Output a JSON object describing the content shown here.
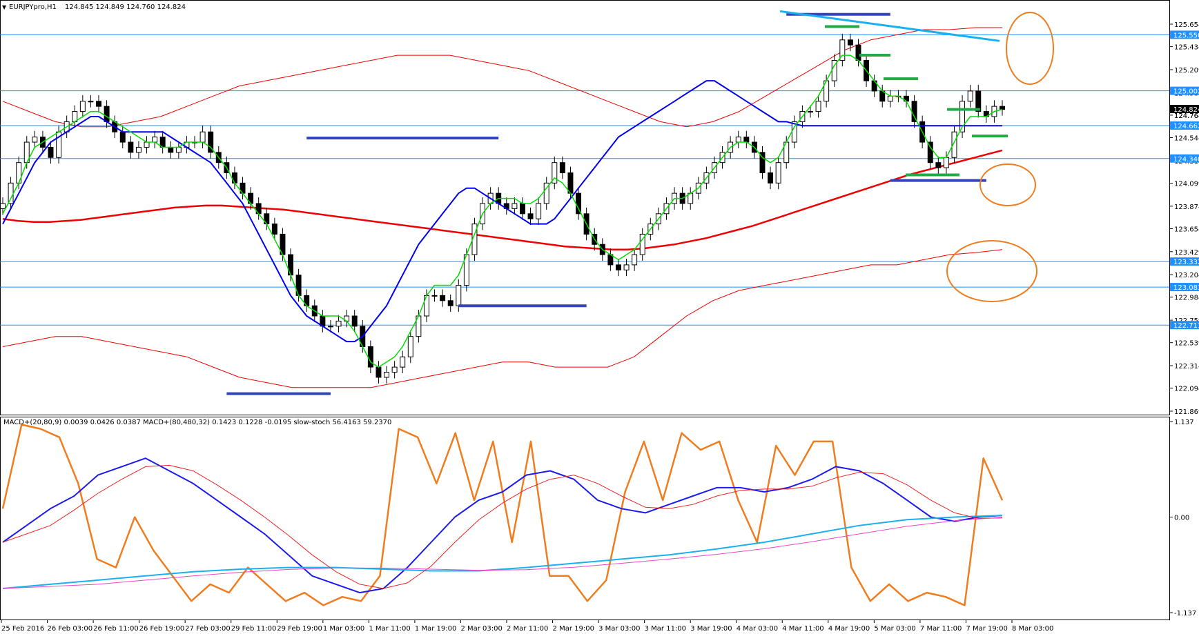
{
  "symbol_label": "EURJPYpro,H1",
  "ohlc": "124.845 124.849 124.760 124.824",
  "indicator_label": "MACD+(20,80,9) 0.0039 0.0426 0.0387  MACD+(80,480,32) 0.1423 0.1228 -0.0195  slow-stoch 56.4163 59.2370",
  "colors": {
    "background": "#ffffff",
    "candle_up": "#ffffff",
    "candle_down": "#000000",
    "ema_fast": "#00dd00",
    "ema_mid": "#0000ee",
    "ema_slow": "#ee0000",
    "bollinger_outer": "#ee0000",
    "bollinger_inner": "#1a1aee",
    "hline": "#1e90ff",
    "support_resist": "#3344bb",
    "small_levels": "#22aa44",
    "trend": "#1ab0f0",
    "circle": "#f07c1e",
    "stoch": "#f07c1e",
    "macd_fast": "#1a1aee",
    "macd_fast_signal": "#ee2222",
    "macd_slow": "#1ab0f0",
    "macd_slow_signal": "#ee44cc",
    "price_tag": "#1e90ff",
    "current_tag": "#000000"
  },
  "chart_data": [
    {
      "type": "candlestick",
      "title": "EURJPYpro,H1",
      "ylim": [
        121.869,
        125.654
      ],
      "y_ticks": [
        "125.654",
        "125.434",
        "125.209",
        "124.984",
        "124.764",
        "124.544",
        "124.319",
        "124.099",
        "123.874",
        "123.654",
        "123.429",
        "123.204",
        "122.984",
        "122.759",
        "122.539",
        "122.314",
        "122.094",
        "121.869"
      ],
      "x_tick_labels": [
        "25 Feb 2016",
        "26 Feb 03:00",
        "26 Feb 11:00",
        "26 Feb 19:00",
        "27 Feb 03:00",
        "29 Feb 11:00",
        "29 Feb 19:00",
        "1 Mar 03:00",
        "1 Mar 11:00",
        "1 Mar 19:00",
        "2 Mar 03:00",
        "2 Mar 11:00",
        "2 Mar 19:00",
        "3 Mar 03:00",
        "3 Mar 11:00",
        "3 Mar 19:00",
        "4 Mar 03:00",
        "4 Mar 11:00",
        "4 Mar 19:00",
        "5 Mar 03:00",
        "7 Mar 11:00",
        "7 Mar 19:00",
        "8 Mar 03:00"
      ],
      "horizontal_levels": [
        {
          "value": 125.55,
          "label": "125.550"
        },
        {
          "value": 125.002,
          "label": "125.002"
        },
        {
          "value": 124.662,
          "label": "124.662"
        },
        {
          "value": 124.34,
          "label": "124.340"
        },
        {
          "value": 123.332,
          "label": "123.332"
        },
        {
          "value": 123.083,
          "label": "123.083"
        },
        {
          "value": 122.711,
          "label": "122.711"
        }
      ],
      "current_price": {
        "value": 124.824,
        "label": "124.824"
      },
      "secondary_price": {
        "value": 124.764,
        "label": "124.764"
      },
      "close_series": [
        123.9,
        124.1,
        124.3,
        124.5,
        124.55,
        124.45,
        124.35,
        124.6,
        124.7,
        124.8,
        124.9,
        124.9,
        124.85,
        124.7,
        124.6,
        124.5,
        124.4,
        124.45,
        124.5,
        124.55,
        124.45,
        124.4,
        124.45,
        124.5,
        124.5,
        124.6,
        124.4,
        124.3,
        124.2,
        124.1,
        124.0,
        123.9,
        123.8,
        123.7,
        123.6,
        123.4,
        123.2,
        123.0,
        122.9,
        122.8,
        122.7,
        122.7,
        122.75,
        122.8,
        122.7,
        122.5,
        122.3,
        122.2,
        122.25,
        122.3,
        122.4,
        122.6,
        122.8,
        123.0,
        123.0,
        122.95,
        122.9,
        123.1,
        123.4,
        123.7,
        123.9,
        124.0,
        123.9,
        123.85,
        123.9,
        123.8,
        123.75,
        123.9,
        124.1,
        124.3,
        124.2,
        124.0,
        123.8,
        123.6,
        123.5,
        123.4,
        123.3,
        123.25,
        123.3,
        123.4,
        123.6,
        123.7,
        123.8,
        123.9,
        124.0,
        123.9,
        124.0,
        124.1,
        124.2,
        124.3,
        124.4,
        124.5,
        124.55,
        124.5,
        124.4,
        124.2,
        124.1,
        124.3,
        124.5,
        124.7,
        124.8,
        124.8,
        124.9,
        125.1,
        125.3,
        125.5,
        125.45,
        125.3,
        125.1,
        125.0,
        124.9,
        124.95,
        124.95,
        124.9,
        124.7,
        124.5,
        124.3,
        124.25,
        124.35,
        124.6,
        124.9,
        125.0,
        124.8,
        124.75,
        124.85,
        124.82
      ],
      "ema_fast": [
        123.8,
        123.95,
        124.1,
        124.3,
        124.45,
        124.5,
        124.55,
        124.6,
        124.65,
        124.7,
        124.75,
        124.8,
        124.8,
        124.75,
        124.7,
        124.65,
        124.6,
        124.55,
        124.5,
        124.5,
        124.45,
        124.45,
        124.45,
        124.5,
        124.5,
        124.5,
        124.45,
        124.35,
        124.25,
        124.1,
        124.0,
        123.9,
        123.8,
        123.7,
        123.55,
        123.4,
        123.2,
        123.0,
        122.9,
        122.85,
        122.8,
        122.8,
        122.8,
        122.75,
        122.65,
        122.5,
        122.35,
        122.3,
        122.35,
        122.4,
        122.5,
        122.65,
        122.8,
        123.0,
        123.1,
        123.1,
        123.1,
        123.2,
        123.4,
        123.6,
        123.8,
        123.9,
        123.95,
        123.95,
        123.95,
        123.9,
        123.9,
        123.95,
        124.05,
        124.15,
        124.1,
        124.0,
        123.85,
        123.7,
        123.55,
        123.45,
        123.4,
        123.35,
        123.4,
        123.45,
        123.55,
        123.65,
        123.75,
        123.85,
        123.95,
        123.95,
        124.0,
        124.05,
        124.15,
        124.25,
        124.35,
        124.45,
        124.5,
        124.5,
        124.45,
        124.35,
        124.3,
        124.35,
        124.5,
        124.65,
        124.75,
        124.85,
        124.95,
        125.1,
        125.25,
        125.35,
        125.35,
        125.3,
        125.2,
        125.1,
        125.0,
        124.95,
        124.95,
        124.9,
        124.75,
        124.6,
        124.45,
        124.35,
        124.35,
        124.5,
        124.65,
        124.75,
        124.75,
        124.75,
        124.8,
        124.82
      ],
      "ema_mid": [
        123.7,
        123.85,
        124.0,
        124.15,
        124.3,
        124.4,
        124.5,
        124.55,
        124.6,
        124.65,
        124.7,
        124.75,
        124.75,
        124.7,
        124.65,
        124.6,
        124.6,
        124.6,
        124.6,
        124.6,
        124.6,
        124.55,
        124.5,
        124.45,
        124.4,
        124.35,
        124.3,
        124.2,
        124.1,
        124.0,
        123.9,
        123.75,
        123.6,
        123.45,
        123.3,
        123.15,
        123.0,
        122.9,
        122.8,
        122.75,
        122.7,
        122.65,
        122.6,
        122.55,
        122.55,
        122.6,
        122.7,
        122.8,
        122.9,
        123.05,
        123.2,
        123.35,
        123.5,
        123.6,
        123.7,
        123.8,
        123.9,
        124.0,
        124.05,
        124.05,
        124.0,
        123.95,
        123.9,
        123.85,
        123.8,
        123.75,
        123.7,
        123.7,
        123.7,
        123.75,
        123.85,
        123.95,
        124.05,
        124.15,
        124.25,
        124.35,
        124.45,
        124.55,
        124.6,
        124.65,
        124.7,
        124.75,
        124.8,
        124.85,
        124.9,
        124.95,
        125.0,
        125.05,
        125.1,
        125.1,
        125.05,
        125.0,
        124.95,
        124.9,
        124.85,
        124.8,
        124.75,
        124.7,
        124.7,
        124.68,
        124.66,
        124.66,
        124.66,
        124.66,
        124.66,
        124.66,
        124.66,
        124.66,
        124.66,
        124.66,
        124.66,
        124.66,
        124.66,
        124.66,
        124.66,
        124.66,
        124.66,
        124.66,
        124.66,
        124.66,
        124.66,
        124.66,
        124.66,
        124.66,
        124.66,
        124.66
      ],
      "ema_slow": [
        123.75,
        123.73,
        123.72,
        123.72,
        123.73,
        123.74,
        123.76,
        123.78,
        123.8,
        123.82,
        123.84,
        123.86,
        123.87,
        123.88,
        123.88,
        123.87,
        123.86,
        123.85,
        123.84,
        123.82,
        123.8,
        123.78,
        123.76,
        123.74,
        123.72,
        123.7,
        123.68,
        123.66,
        123.64,
        123.62,
        123.6,
        123.58,
        123.56,
        123.54,
        123.52,
        123.5,
        123.48,
        123.47,
        123.46,
        123.45,
        123.45,
        123.46,
        123.48,
        123.5,
        123.53,
        123.56,
        123.6,
        123.64,
        123.68,
        123.73,
        123.78,
        123.83,
        123.88,
        123.93,
        123.98,
        124.03,
        124.08,
        124.13,
        124.18,
        124.22,
        124.26,
        124.3,
        124.34,
        124.38,
        124.42
      ],
      "bollinger_outer_upper": [
        124.9,
        124.8,
        124.7,
        124.65,
        124.65,
        124.7,
        124.75,
        124.85,
        124.95,
        125.05,
        125.1,
        125.15,
        125.2,
        125.25,
        125.3,
        125.35,
        125.35,
        125.35,
        125.3,
        125.25,
        125.2,
        125.1,
        125.0,
        124.9,
        124.8,
        124.7,
        124.65,
        124.7,
        124.8,
        124.95,
        125.1,
        125.25,
        125.4,
        125.5,
        125.55,
        125.6,
        125.6,
        125.62,
        125.62
      ],
      "bollinger_outer_lower": [
        122.5,
        122.55,
        122.6,
        122.6,
        122.55,
        122.5,
        122.45,
        122.4,
        122.3,
        122.2,
        122.15,
        122.1,
        122.1,
        122.1,
        122.1,
        122.15,
        122.2,
        122.25,
        122.3,
        122.35,
        122.35,
        122.3,
        122.3,
        122.3,
        122.4,
        122.6,
        122.8,
        122.95,
        123.05,
        123.1,
        123.15,
        123.2,
        123.25,
        123.3,
        123.3,
        123.35,
        123.4,
        123.42,
        123.45
      ],
      "support_resistance_segments": [
        {
          "value": 124.54,
          "start_index": 38,
          "end_index": 62
        },
        {
          "value": 122.04,
          "start_index": 28,
          "end_index": 41
        },
        {
          "value": 122.9,
          "start_index": 57,
          "end_index": 73
        },
        {
          "value": 125.75,
          "start_index": 98,
          "end_index": 111
        },
        {
          "value": 124.125,
          "start_index": 111,
          "end_index": 123
        }
      ],
      "small_level_marks": [
        125.63,
        125.35,
        125.12,
        124.82,
        124.56,
        124.18
      ],
      "trend_line": {
        "from_value": 125.78,
        "to_value": 125.49
      }
    },
    {
      "type": "line",
      "title": "MACD+(20,80,9) 0.0039 0.0426 0.0387  MACD+(80,480,32) 0.1423 0.1228 -0.0195  slow-stoch 56.4163 59.2370",
      "ylim": [
        -1.137,
        1.137
      ],
      "y_ticks": [
        "1.137",
        "0.00",
        "-1.137"
      ],
      "series": [
        {
          "name": "slow-stoch",
          "values": [
            0.1,
            1.1,
            1.05,
            0.95,
            0.4,
            -0.5,
            -0.6,
            0.0,
            -0.4,
            -0.7,
            -1.0,
            -0.8,
            -0.9,
            -0.6,
            -0.8,
            -1.0,
            -0.9,
            -1.05,
            -0.95,
            -1.0,
            -0.7,
            1.05,
            0.95,
            0.4,
            1.0,
            0.2,
            0.9,
            -0.3,
            0.9,
            -0.7,
            -0.7,
            -1.0,
            -0.75,
            0.3,
            0.9,
            0.2,
            1.0,
            0.8,
            0.9,
            0.2,
            -0.3,
            0.85,
            0.5,
            0.9,
            0.9,
            -0.6,
            -1.0,
            -0.8,
            -1.0,
            -0.9,
            -0.95,
            -1.05,
            0.7,
            0.2
          ]
        },
        {
          "name": "MACD+(20,80,9)",
          "values": [
            -0.3,
            -0.1,
            0.1,
            0.25,
            0.5,
            0.6,
            0.7,
            0.55,
            0.4,
            0.2,
            0.0,
            -0.2,
            -0.45,
            -0.7,
            -0.8,
            -0.9,
            -0.85,
            -0.6,
            -0.3,
            0.0,
            0.2,
            0.3,
            0.5,
            0.55,
            0.45,
            0.2,
            0.1,
            0.05,
            0.15,
            0.25,
            0.35,
            0.35,
            0.3,
            0.35,
            0.45,
            0.6,
            0.55,
            0.4,
            0.2,
            0.0,
            -0.05,
            0.0,
            0.02
          ]
        },
        {
          "name": "MACD+(80,480,32)",
          "values": [
            -0.85,
            -0.8,
            -0.75,
            -0.7,
            -0.65,
            -0.62,
            -0.6,
            -0.6,
            -0.62,
            -0.64,
            -0.64,
            -0.6,
            -0.55,
            -0.5,
            -0.45,
            -0.38,
            -0.3,
            -0.2,
            -0.1,
            -0.03,
            0.0,
            0.02
          ]
        }
      ]
    }
  ]
}
